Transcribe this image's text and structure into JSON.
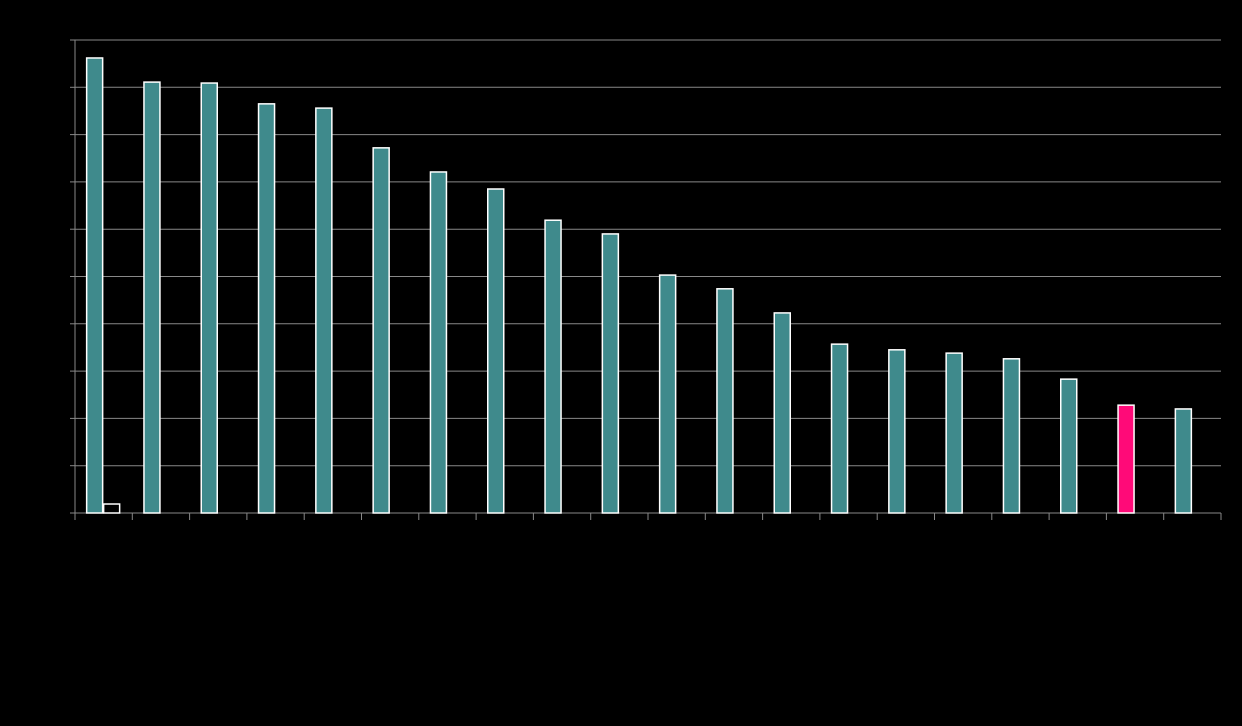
{
  "chart_data": {
    "type": "bar",
    "categories": [
      null,
      null,
      null,
      null,
      null,
      null,
      null,
      null,
      null,
      null,
      null,
      null,
      null,
      null,
      null,
      null,
      null,
      null,
      null,
      null
    ],
    "series": [
      {
        "color": "#3f8a8c",
        "colors": [
          "#3f8a8c",
          "#3f8a8c",
          "#3f8a8c",
          "#3f8a8c",
          "#3f8a8c",
          "#3f8a8c",
          "#3f8a8c",
          "#3f8a8c",
          "#3f8a8c",
          "#3f8a8c",
          "#3f8a8c",
          "#3f8a8c",
          "#3f8a8c",
          "#3f8a8c",
          "#3f8a8c",
          "#3f8a8c",
          "#3f8a8c",
          "#3f8a8c",
          "#ff0a78",
          "#3f8a8c"
        ],
        "values": [
          9.62,
          9.11,
          9.09,
          8.65,
          8.56,
          7.72,
          7.21,
          6.85,
          6.19,
          5.9,
          5.03,
          4.74,
          4.23,
          3.57,
          3.45,
          3.38,
          3.26,
          2.83,
          2.28,
          2.2
        ]
      },
      {
        "color": "#000000",
        "values": [
          0.19,
          null,
          null,
          null,
          null,
          null,
          null,
          null,
          null,
          null,
          null,
          null,
          null,
          null,
          null,
          null,
          null,
          null,
          null,
          null
        ]
      }
    ],
    "ylim": [
      0,
      10
    ],
    "yticks": [
      0,
      1,
      2,
      3,
      4,
      5,
      6,
      7,
      8,
      9,
      10
    ],
    "grid": true
  }
}
